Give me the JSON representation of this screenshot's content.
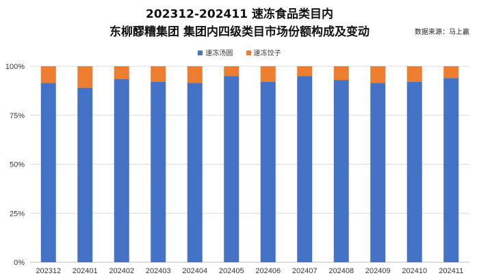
{
  "header": {
    "title_line1": "202312-202411 速冻食品类目内",
    "title_line2": "东柳醪糟集团 集团内四级类目市场份额构成及变动",
    "source": "数据来源：马上赢"
  },
  "colors": {
    "series_0": "#4472C4",
    "series_1": "#ED7D31",
    "gridline": "#D9D9D9",
    "axis": "#BFBFBF"
  },
  "chart_data": {
    "type": "bar",
    "stacked": true,
    "percent": true,
    "categories": [
      "202312",
      "202401",
      "202402",
      "202403",
      "202404",
      "202405",
      "202406",
      "202407",
      "202408",
      "202409",
      "202410",
      "202411"
    ],
    "series": [
      {
        "name": "速冻汤圆",
        "values": [
          91.5,
          89.0,
          93.5,
          92.0,
          91.5,
          95.0,
          92.0,
          95.0,
          93.0,
          91.5,
          92.0,
          94.0
        ]
      },
      {
        "name": "速冻饺子",
        "values": [
          8.5,
          11.0,
          6.5,
          8.0,
          8.5,
          5.0,
          8.0,
          5.0,
          7.0,
          8.5,
          8.0,
          6.0
        ]
      }
    ],
    "y_ticks": [
      "0%",
      "25%",
      "50%",
      "75%",
      "100%"
    ],
    "ylim": [
      0,
      100
    ],
    "grid": true,
    "legend_position": "top"
  }
}
